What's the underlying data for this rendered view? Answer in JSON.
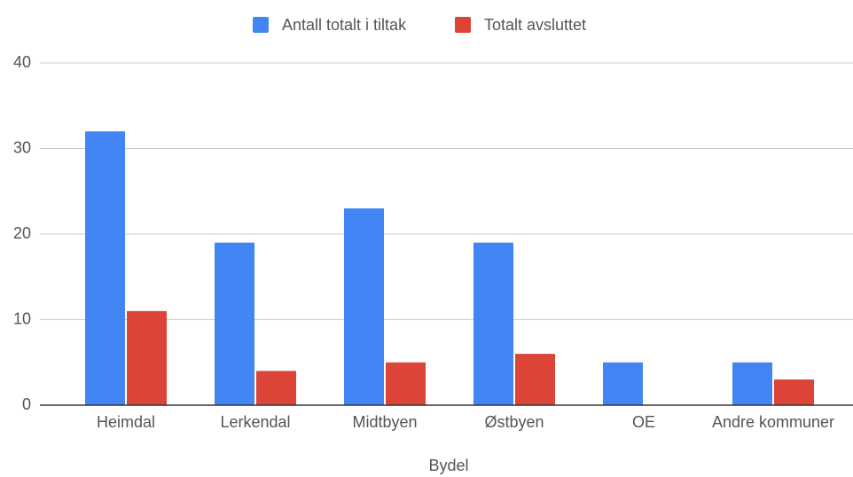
{
  "chart_data": {
    "type": "bar",
    "x_label": "Bydel",
    "categories": [
      "Heimdal",
      "Lerkendal",
      "Midtbyen",
      "Østbyen",
      "OE",
      "Andre kommuner"
    ],
    "series": [
      {
        "name": "Antall totalt i tiltak",
        "color": "#4285f4",
        "values": [
          32,
          19,
          23,
          19,
          5,
          5
        ]
      },
      {
        "name": "Totalt avsluttet",
        "color": "#db4437",
        "values": [
          11,
          4,
          5,
          6,
          0,
          3
        ]
      }
    ],
    "ylim": [
      0,
      40
    ],
    "yticks": [
      0,
      10,
      20,
      30,
      40
    ],
    "grid": true,
    "legend": "top"
  }
}
